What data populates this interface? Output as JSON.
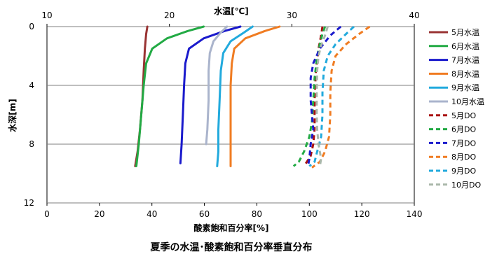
{
  "chart_data": {
    "type": "line",
    "title": "夏季の水温･酸素飽和百分率垂直分布",
    "y_axis": {
      "label": "水深[m]",
      "range": [
        0,
        12
      ],
      "ticks": [
        "0",
        "4",
        "8",
        "12"
      ],
      "inverted": true
    },
    "x_axis_top": {
      "label": "水温[℃]",
      "range": [
        10,
        40
      ],
      "ticks": [
        "10",
        "20",
        "30",
        "40"
      ]
    },
    "x_axis_bottom": {
      "label": "酸素飽和百分率[%]",
      "range": [
        0,
        140
      ],
      "ticks": [
        "0",
        "20",
        "40",
        "60",
        "80",
        "100",
        "120",
        "140"
      ]
    },
    "grid": "horizontal",
    "legend_position": "right",
    "series": [
      {
        "name": "5月水温",
        "axis": "top",
        "color": "#993333",
        "dash": false,
        "points": [
          [
            18.2,
            0
          ],
          [
            18.1,
            0.5
          ],
          [
            18.0,
            1.5
          ],
          [
            17.9,
            3
          ],
          [
            17.8,
            5
          ],
          [
            17.6,
            7
          ],
          [
            17.4,
            8.5
          ],
          [
            17.2,
            9.5
          ]
        ]
      },
      {
        "name": "6月水温",
        "axis": "top",
        "color": "#22aa44",
        "dash": false,
        "points": [
          [
            22.8,
            0
          ],
          [
            21.5,
            0.3
          ],
          [
            19.8,
            0.8
          ],
          [
            18.6,
            1.5
          ],
          [
            18.1,
            2.5
          ],
          [
            17.9,
            4
          ],
          [
            17.7,
            6
          ],
          [
            17.5,
            8
          ],
          [
            17.3,
            9.5
          ]
        ]
      },
      {
        "name": "7月水温",
        "axis": "top",
        "color": "#1a1acc",
        "dash": false,
        "points": [
          [
            25.8,
            0
          ],
          [
            24.5,
            0.3
          ],
          [
            22.8,
            0.8
          ],
          [
            21.6,
            1.5
          ],
          [
            21.3,
            2.5
          ],
          [
            21.2,
            4
          ],
          [
            21.1,
            6
          ],
          [
            21.0,
            8
          ],
          [
            20.9,
            9.3
          ]
        ]
      },
      {
        "name": "8月水温",
        "axis": "top",
        "color": "#f07c22",
        "dash": false,
        "points": [
          [
            29.0,
            0
          ],
          [
            27.8,
            0.3
          ],
          [
            26.2,
            0.8
          ],
          [
            25.3,
            1.5
          ],
          [
            25.1,
            2.5
          ],
          [
            25.0,
            4
          ],
          [
            25.0,
            6
          ],
          [
            25.0,
            8
          ],
          [
            25.0,
            9.5
          ]
        ]
      },
      {
        "name": "9月水温",
        "axis": "top",
        "color": "#22aadd",
        "dash": false,
        "points": [
          [
            26.8,
            0
          ],
          [
            26.1,
            0.4
          ],
          [
            25.0,
            1.0
          ],
          [
            24.4,
            1.8
          ],
          [
            24.2,
            3
          ],
          [
            24.1,
            5
          ],
          [
            24.0,
            7
          ],
          [
            24.0,
            8.5
          ],
          [
            23.9,
            9.5
          ]
        ]
      },
      {
        "name": "10月水温",
        "axis": "top",
        "color": "#aab4cc",
        "dash": false,
        "points": [
          [
            24.7,
            0
          ],
          [
            24.2,
            0.4
          ],
          [
            23.6,
            1.0
          ],
          [
            23.3,
            1.8
          ],
          [
            23.2,
            3
          ],
          [
            23.2,
            5
          ],
          [
            23.1,
            7
          ],
          [
            23.0,
            8
          ]
        ]
      },
      {
        "name": "5月DO",
        "axis": "bottom",
        "color": "#aa1111",
        "dash": true,
        "points": [
          [
            105,
            0
          ],
          [
            104.5,
            0.6
          ],
          [
            103.5,
            1.5
          ],
          [
            102.5,
            3
          ],
          [
            102,
            5
          ],
          [
            102,
            7
          ],
          [
            101.5,
            8
          ],
          [
            100.5,
            8.8
          ],
          [
            98,
            9.5
          ]
        ]
      },
      {
        "name": "6月DO",
        "axis": "bottom",
        "color": "#22aa44",
        "dash": true,
        "points": [
          [
            106,
            0
          ],
          [
            105,
            0.5
          ],
          [
            104,
            1.2
          ],
          [
            103,
            2
          ],
          [
            102,
            3.5
          ],
          [
            101.5,
            5
          ],
          [
            101,
            6.5
          ],
          [
            100,
            7.5
          ],
          [
            98,
            8.5
          ],
          [
            96,
            9.2
          ],
          [
            94,
            9.5
          ]
        ]
      },
      {
        "name": "7月DO",
        "axis": "bottom",
        "color": "#1a1acc",
        "dash": true,
        "points": [
          [
            112,
            0
          ],
          [
            108,
            0.6
          ],
          [
            104,
            1.5
          ],
          [
            101.5,
            2.5
          ],
          [
            100.5,
            3.5
          ],
          [
            100.5,
            5
          ],
          [
            101,
            6
          ],
          [
            101.5,
            7
          ],
          [
            100.5,
            8
          ],
          [
            100,
            9
          ],
          [
            99.5,
            9.5
          ]
        ]
      },
      {
        "name": "8月DO",
        "axis": "bottom",
        "color": "#f07c22",
        "dash": true,
        "points": [
          [
            123,
            0
          ],
          [
            119,
            0.5
          ],
          [
            114,
            1.2
          ],
          [
            110,
            2
          ],
          [
            108.5,
            3
          ],
          [
            108,
            4.5
          ],
          [
            108,
            6
          ],
          [
            107.5,
            7.5
          ],
          [
            106,
            8.5
          ],
          [
            104,
            9.2
          ],
          [
            101,
            9.6
          ]
        ]
      },
      {
        "name": "9月DO",
        "axis": "bottom",
        "color": "#22aadd",
        "dash": true,
        "points": [
          [
            117,
            0
          ],
          [
            114,
            0.5
          ],
          [
            110,
            1.2
          ],
          [
            107,
            2
          ],
          [
            105.5,
            3
          ],
          [
            105,
            4.5
          ],
          [
            105,
            6
          ],
          [
            104.5,
            7.5
          ],
          [
            103,
            8.5
          ],
          [
            102,
            9.2
          ],
          [
            100,
            9.5
          ]
        ]
      },
      {
        "name": "10月DO",
        "axis": "bottom",
        "color": "#aab8aa",
        "dash": true,
        "points": [
          [
            107,
            0
          ],
          [
            106,
            0.6
          ],
          [
            104.5,
            1.3
          ],
          [
            103.5,
            2
          ],
          [
            103,
            3
          ],
          [
            102.8,
            4.5
          ],
          [
            102.8,
            6
          ],
          [
            103,
            7
          ],
          [
            103.5,
            8
          ],
          [
            104.5,
            9
          ],
          [
            104,
            9.5
          ]
        ]
      }
    ]
  }
}
